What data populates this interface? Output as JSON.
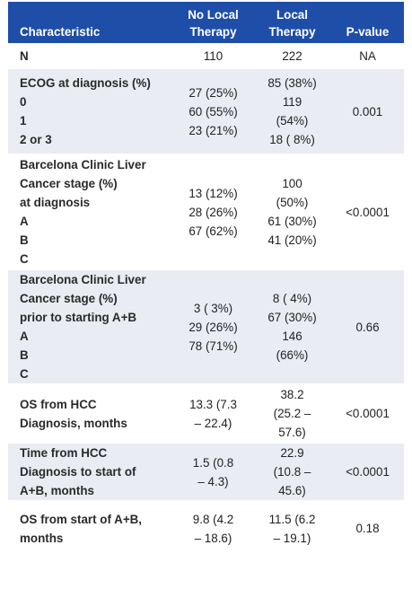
{
  "headers": [
    "Characteristic",
    "No Local\nTherapy",
    "Local\nTherapy",
    "P-value"
  ],
  "rows": [
    {
      "label": [
        "N"
      ],
      "col1": [
        "110"
      ],
      "col2": [
        "222"
      ],
      "pvalue": "NA"
    },
    {
      "label": [
        "ECOG at diagnosis (%)",
        "0",
        "1",
        "2 or 3"
      ],
      "col1": [
        "27 (25%)",
        "60 (55%)",
        "23 (21%)"
      ],
      "col2": [
        "85 (38%)",
        "119",
        "(54%)",
        "18 ( 8%)"
      ],
      "pvalue": "0.001"
    },
    {
      "label": [
        "Barcelona Clinic Liver",
        "Cancer stage (%)",
        "at diagnosis",
        "A",
        "B",
        "C"
      ],
      "col1": [
        "13 (12%)",
        "28 (26%)",
        "67 (62%)"
      ],
      "col2": [
        "100",
        "(50%)",
        "61 (30%)",
        "41 (20%)"
      ],
      "pvalue": "<0.0001"
    },
    {
      "label": [
        "Barcelona Clinic Liver",
        "Cancer stage (%)",
        "prior to starting A+B",
        "A",
        "B",
        "C"
      ],
      "col1": [
        "3 ( 3%)",
        "29 (26%)",
        "78 (71%)"
      ],
      "col2": [
        "8 ( 4%)",
        "67 (30%)",
        "146",
        "(66%)"
      ],
      "pvalue": "0.66"
    },
    {
      "label": [
        "OS from HCC",
        "Diagnosis, months"
      ],
      "col1": [
        "13.3 (7.3",
        "– 22.4)"
      ],
      "col2": [
        "38.2",
        "(25.2 –",
        "57.6)"
      ],
      "pvalue": "<0.0001"
    },
    {
      "label": [
        "Time from HCC",
        "Diagnosis to start of",
        "A+B, months"
      ],
      "col1": [
        "1.5 (0.8",
        "– 4.3)"
      ],
      "col2": [
        "22.9",
        "(10.8 –",
        "45.6)"
      ],
      "pvalue": "<0.0001"
    },
    {
      "label": [
        "OS from start of A+B,",
        "months"
      ],
      "col1": [
        "9.8 (4.2",
        "– 18.6)"
      ],
      "col2": [
        "11.5 (6.2",
        "– 19.1)"
      ],
      "pvalue": "0.18"
    }
  ]
}
